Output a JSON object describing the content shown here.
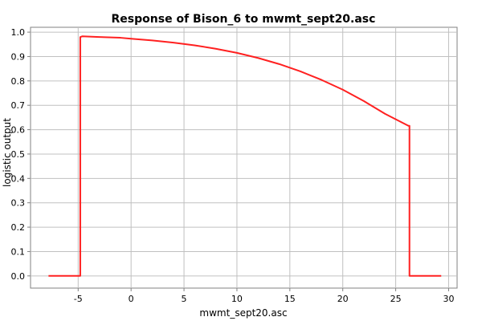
{
  "chart_data": {
    "type": "line",
    "title": "Response of Bison_6 to mwmt_sept20.asc",
    "xlabel": "mwmt_sept20.asc",
    "ylabel": "logistic output",
    "xlim": [
      -9.5,
      30.8
    ],
    "ylim": [
      -0.05,
      1.02
    ],
    "x_ticks": [
      -5,
      0,
      5,
      10,
      15,
      20,
      25,
      30
    ],
    "x_tick_labels": [
      "-5",
      "0",
      "5",
      "10",
      "15",
      "20",
      "25",
      "30"
    ],
    "y_ticks": [
      0.0,
      0.1,
      0.2,
      0.3,
      0.4,
      0.5,
      0.6,
      0.7,
      0.8,
      0.9,
      1.0
    ],
    "y_tick_labels": [
      "0.0",
      "0.1",
      "0.2",
      "0.3",
      "0.4",
      "0.5",
      "0.6",
      "0.7",
      "0.8",
      "0.9",
      "1.0"
    ],
    "grid": true,
    "series": [
      {
        "color": "#ff2020",
        "x": [
          -7.8,
          -4.8,
          -4.8,
          -4.6,
          -3,
          -1,
          0,
          2,
          4,
          6,
          8,
          10,
          12,
          14,
          16,
          18,
          20,
          22,
          24,
          26.2,
          26.3,
          26.3,
          29.3
        ],
        "y": [
          0.0,
          0.0,
          0.98,
          0.983,
          0.98,
          0.977,
          0.973,
          0.966,
          0.957,
          0.946,
          0.932,
          0.915,
          0.894,
          0.869,
          0.839,
          0.804,
          0.764,
          0.717,
          0.665,
          0.616,
          0.616,
          0.0,
          0.0
        ]
      }
    ]
  }
}
